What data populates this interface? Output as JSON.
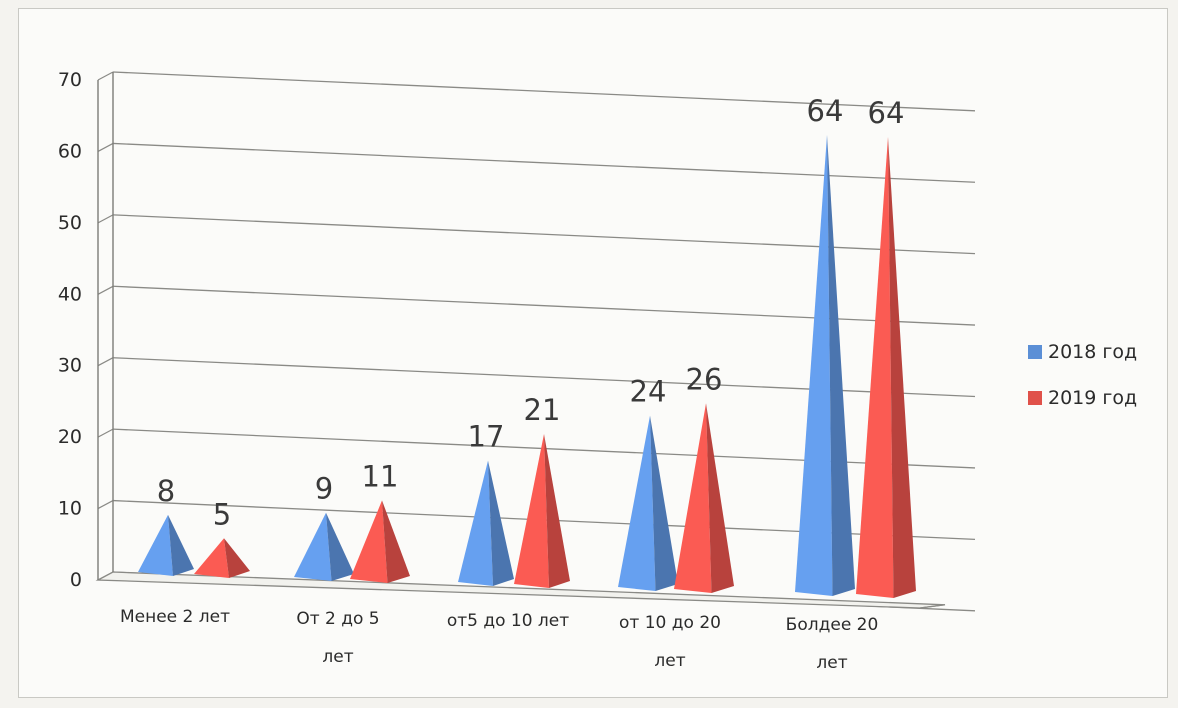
{
  "chart_data": {
    "type": "bar",
    "style": "3d-pyramid",
    "categories": [
      [
        "Менее 2 лет"
      ],
      [
        "От 2 до 5",
        "лет"
      ],
      [
        "от5 до 10 лет"
      ],
      [
        "от 10 до 20",
        "лет"
      ],
      [
        "Болдее 20",
        "лет"
      ]
    ],
    "series": [
      {
        "name": "2018 год",
        "values": [
          8,
          9,
          17,
          24,
          64
        ],
        "color": "#5b8fd6"
      },
      {
        "name": "2019 год",
        "values": [
          5,
          11,
          21,
          26,
          64
        ],
        "color": "#e0514a"
      }
    ],
    "yticks": [
      "0",
      "10",
      "20",
      "30",
      "40",
      "50",
      "60",
      "70"
    ],
    "ylim": [
      0,
      70
    ],
    "grid": true,
    "data_labels": true,
    "legend_position": "right"
  }
}
